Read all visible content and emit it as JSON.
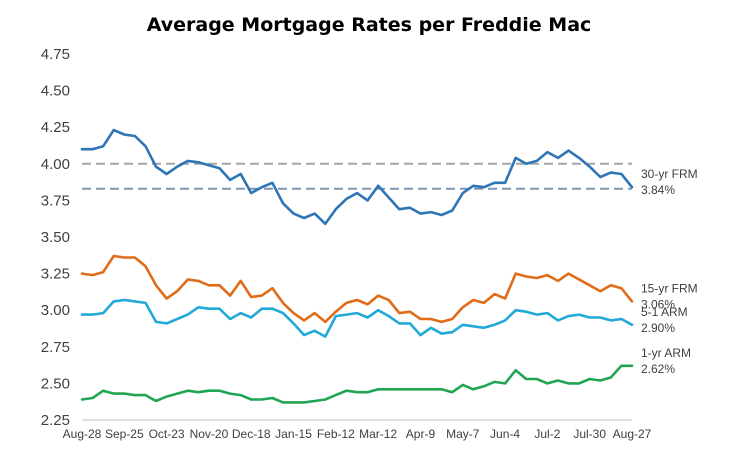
{
  "chart_data": {
    "type": "line",
    "title": "Average Mortgage Rates per Freddie Mac",
    "xlabel": "",
    "ylabel": "",
    "ylim": [
      2.25,
      4.75
    ],
    "yticks": [
      "4.75",
      "4.50",
      "4.25",
      "4.00",
      "3.75",
      "3.50",
      "3.25",
      "3.00",
      "2.75",
      "2.50",
      "2.25"
    ],
    "xticks": [
      "Aug-28",
      "Sep-25",
      "Oct-23",
      "Nov-20",
      "Dec-18",
      "Jan-15",
      "Feb-12",
      "Mar-12",
      "Apr-9",
      "May-7",
      "Jun-4",
      "Jul-2",
      "Jul-30",
      "Aug-27"
    ],
    "grid": false,
    "reference_lines": [
      {
        "value": 4.0,
        "color": "#a6a6a6",
        "style": "dashed"
      },
      {
        "value": 3.83,
        "color": "#7f97b2",
        "style": "dashed"
      }
    ],
    "series": [
      {
        "name": "30-yr FRM",
        "end_label": "3.84%",
        "color": "#2e75b6",
        "values": [
          4.1,
          4.1,
          4.12,
          4.23,
          4.2,
          4.19,
          4.12,
          3.98,
          3.93,
          3.98,
          4.02,
          4.01,
          3.99,
          3.97,
          3.89,
          3.93,
          3.8,
          3.84,
          3.87,
          3.73,
          3.66,
          3.63,
          3.66,
          3.59,
          3.69,
          3.76,
          3.8,
          3.75,
          3.85,
          3.77,
          3.69,
          3.7,
          3.66,
          3.67,
          3.65,
          3.68,
          3.8,
          3.85,
          3.84,
          3.87,
          3.87,
          4.04,
          4.0,
          4.02,
          4.08,
          4.04,
          4.09,
          4.04,
          3.98,
          3.91,
          3.94,
          3.93,
          3.84
        ]
      },
      {
        "name": "15-yr FRM",
        "end_label": "3.06%",
        "color": "#e06c1a",
        "values": [
          3.25,
          3.24,
          3.26,
          3.37,
          3.36,
          3.36,
          3.3,
          3.17,
          3.08,
          3.13,
          3.21,
          3.2,
          3.17,
          3.17,
          3.1,
          3.2,
          3.09,
          3.1,
          3.15,
          3.05,
          2.98,
          2.93,
          2.98,
          2.92,
          2.99,
          3.05,
          3.07,
          3.04,
          3.1,
          3.07,
          2.98,
          2.99,
          2.94,
          2.94,
          2.92,
          2.94,
          3.02,
          3.07,
          3.05,
          3.11,
          3.08,
          3.25,
          3.23,
          3.22,
          3.24,
          3.2,
          3.25,
          3.21,
          3.17,
          3.13,
          3.17,
          3.15,
          3.06
        ]
      },
      {
        "name": "5-1 ARM",
        "end_label": "2.90%",
        "color": "#21a9d8",
        "values": [
          2.97,
          2.97,
          2.98,
          3.06,
          3.07,
          3.06,
          3.05,
          2.92,
          2.91,
          2.94,
          2.97,
          3.02,
          3.01,
          3.01,
          2.94,
          2.98,
          2.95,
          3.01,
          3.01,
          2.98,
          2.91,
          2.83,
          2.86,
          2.82,
          2.96,
          2.97,
          2.98,
          2.95,
          3.0,
          2.96,
          2.91,
          2.91,
          2.83,
          2.88,
          2.84,
          2.85,
          2.9,
          2.89,
          2.88,
          2.9,
          2.93,
          3.0,
          2.99,
          2.97,
          2.98,
          2.93,
          2.96,
          2.97,
          2.95,
          2.95,
          2.93,
          2.94,
          2.9
        ]
      },
      {
        "name": "1-yr ARM",
        "end_label": "2.62%",
        "color": "#22a552",
        "values": [
          2.39,
          2.4,
          2.45,
          2.43,
          2.43,
          2.42,
          2.42,
          2.38,
          2.41,
          2.43,
          2.45,
          2.44,
          2.45,
          2.45,
          2.43,
          2.42,
          2.39,
          2.39,
          2.4,
          2.37,
          2.37,
          2.37,
          2.38,
          2.39,
          2.42,
          2.45,
          2.44,
          2.44,
          2.46,
          2.46,
          2.46,
          2.46,
          2.46,
          2.46,
          2.46,
          2.44,
          2.49,
          2.46,
          2.48,
          2.51,
          2.5,
          2.59,
          2.53,
          2.53,
          2.5,
          2.52,
          2.5,
          2.5,
          2.53,
          2.52,
          2.54,
          2.62,
          2.62
        ]
      }
    ]
  }
}
